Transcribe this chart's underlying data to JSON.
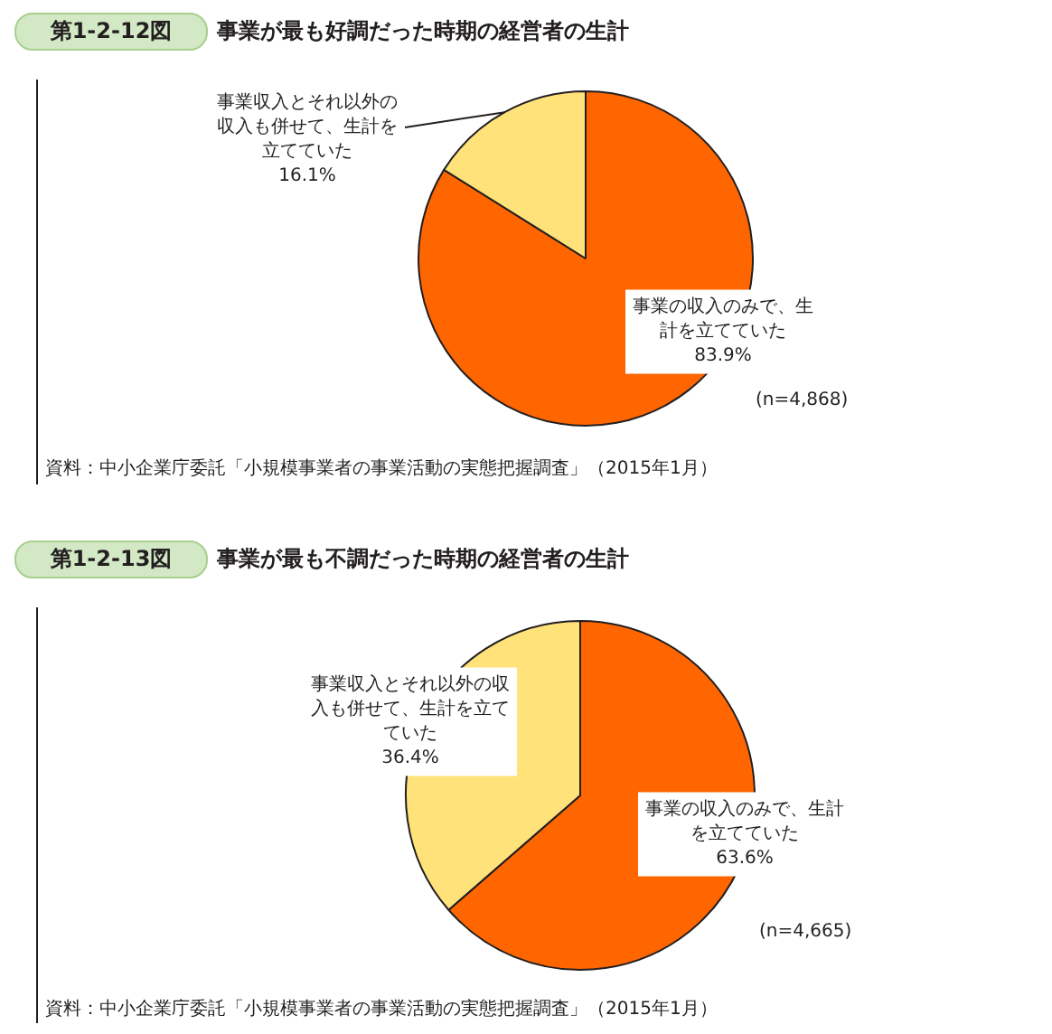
{
  "chart_data": [
    {
      "type": "pie",
      "title": "事業が最も好調だった時期の経営者の生計",
      "categories": [
        "事業の収入のみで、生計を立てていた",
        "事業収入とそれ以外の収入も併せて、生計を立てていた"
      ],
      "values": [
        83.9,
        16.1
      ],
      "value_labels": [
        "83.9%",
        "16.1%"
      ],
      "colors": [
        "#ff6600",
        "#ffe27a"
      ],
      "annotations": [
        "第1-2-12図",
        "(n=4,868)",
        "資料：中小企業庁委託「小規模事業者の事業活動の実態把握調査」（2015年1月）"
      ]
    },
    {
      "type": "pie",
      "title": "事業が最も不調だった時期の経営者の生計",
      "categories": [
        "事業の収入のみで、生計を立てていた",
        "事業収入とそれ以外の収入も併せて、生計を立てていた"
      ],
      "values": [
        63.6,
        36.4
      ],
      "value_labels": [
        "63.6%",
        "36.4%"
      ],
      "colors": [
        "#ff6600",
        "#ffe27a"
      ],
      "annotations": [
        "第1-2-13図",
        "(n=4,665)",
        "資料：中小企業庁委託「小規模事業者の事業活動の実態把握調査」（2015年1月）"
      ]
    }
  ]
}
